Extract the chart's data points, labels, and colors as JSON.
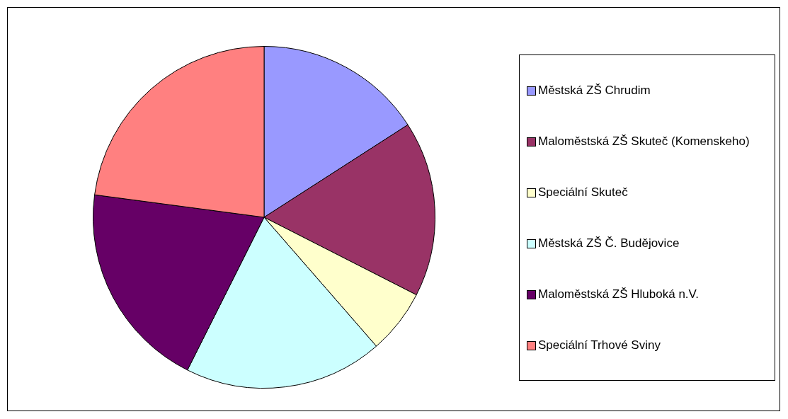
{
  "chart_data": {
    "type": "pie",
    "categories": [
      "Městská ZŠ Chrudim",
      "Maloměstská ZŠ Skuteč (Komenskeho)",
      "Speciální Skuteč",
      "Městská ZŠ Č. Budějovice",
      "Maloměstská ZŠ Hluboká n.V.",
      "Speciální Trhové Sviny"
    ],
    "values": [
      15.9,
      16.6,
      6.1,
      18.8,
      19.7,
      22.9
    ],
    "colors": [
      "#9999ff",
      "#993366",
      "#ffffcc",
      "#ccffff",
      "#660066",
      "#ff8080"
    ],
    "legend": "right"
  }
}
